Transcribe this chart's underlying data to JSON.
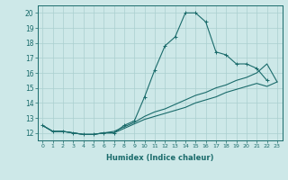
{
  "xlabel": "Humidex (Indice chaleur)",
  "xlim": [
    -0.5,
    23.5
  ],
  "ylim": [
    11.5,
    20.5
  ],
  "xticks": [
    0,
    1,
    2,
    3,
    4,
    5,
    6,
    7,
    8,
    9,
    10,
    11,
    12,
    13,
    14,
    15,
    16,
    17,
    18,
    19,
    20,
    21,
    22,
    23
  ],
  "yticks": [
    12,
    13,
    14,
    15,
    16,
    17,
    18,
    19,
    20
  ],
  "background_color": "#cde8e8",
  "grid_color": "#aacfcf",
  "line_color": "#1a6b6b",
  "line1_x": [
    0,
    1,
    2,
    3,
    4,
    5,
    6,
    7,
    8,
    9,
    10,
    11,
    12,
    13,
    14,
    15,
    16,
    17,
    18,
    19,
    20,
    21,
    22
  ],
  "line1_y": [
    12.5,
    12.1,
    12.1,
    12.0,
    11.9,
    11.9,
    12.0,
    12.0,
    12.5,
    12.8,
    14.4,
    16.2,
    17.8,
    18.4,
    20.0,
    20.0,
    19.4,
    17.4,
    17.2,
    16.6,
    16.6,
    16.3,
    15.5
  ],
  "line2_x": [
    0,
    1,
    2,
    3,
    4,
    5,
    6,
    7,
    8,
    9,
    10,
    11,
    12,
    13,
    14,
    15,
    16,
    17,
    18,
    19,
    20,
    21,
    22,
    23
  ],
  "line2_y": [
    12.5,
    12.1,
    12.1,
    12.0,
    11.9,
    11.9,
    12.0,
    12.1,
    12.4,
    12.7,
    13.1,
    13.4,
    13.6,
    13.9,
    14.2,
    14.5,
    14.7,
    15.0,
    15.2,
    15.5,
    15.7,
    16.0,
    16.6,
    15.4
  ],
  "line3_x": [
    0,
    1,
    2,
    3,
    4,
    5,
    6,
    7,
    8,
    9,
    10,
    11,
    12,
    13,
    14,
    15,
    16,
    17,
    18,
    19,
    20,
    21,
    22,
    23
  ],
  "line3_y": [
    12.5,
    12.1,
    12.1,
    12.0,
    11.9,
    11.9,
    12.0,
    12.0,
    12.3,
    12.6,
    12.9,
    13.1,
    13.3,
    13.5,
    13.7,
    14.0,
    14.2,
    14.4,
    14.7,
    14.9,
    15.1,
    15.3,
    15.1,
    15.4
  ]
}
